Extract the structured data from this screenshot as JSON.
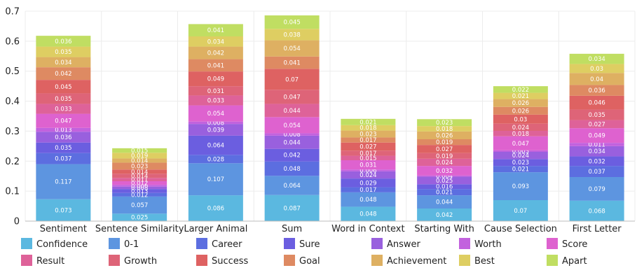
{
  "chart_data": {
    "type": "bar",
    "stacked": true,
    "title": "",
    "xlabel": "",
    "ylabel": "",
    "ylim": [
      0,
      0.7
    ],
    "yticks": [
      "0",
      "0.1",
      "0.2",
      "0.3",
      "0.4",
      "0.5",
      "0.6",
      "0.7"
    ],
    "grid": true,
    "legend": "bottom",
    "categories": [
      "Sentiment",
      "Sentence Similarity",
      "Larger Animal",
      "Sum",
      "Word in Context",
      "Starting With",
      "Cause Selection",
      "First Letter"
    ],
    "series": [
      {
        "name": "Confidence",
        "color": "#5bb8e0",
        "values": [
          0.073,
          0.025,
          0.086,
          0.087,
          0.048,
          0.042,
          0.07,
          0.068
        ]
      },
      {
        "name": "0-1",
        "color": "#5d95e0",
        "values": [
          0.117,
          0.057,
          0.107,
          0.064,
          0.048,
          0.044,
          0.093,
          0.079
        ]
      },
      {
        "name": "Career",
        "color": "#5c6ee0",
        "values": [
          0.037,
          0.012,
          0.028,
          0.048,
          0.017,
          0.021,
          0.021,
          0.037
        ]
      },
      {
        "name": "Sure",
        "color": "#6b5ee0",
        "values": [
          0.035,
          0.013,
          0.064,
          0.042,
          0.029,
          0.016,
          0.023,
          0.032
        ]
      },
      {
        "name": "Answer",
        "color": "#9960de",
        "values": [
          0.036,
          0.008,
          0.039,
          0.044,
          0.024,
          0.025,
          0.024,
          0.034
        ]
      },
      {
        "name": "Worth",
        "color": "#c262de",
        "values": [
          0.013,
          0.006,
          0.008,
          0.008,
          0.006,
          0.004,
          0.005,
          0.011
        ]
      },
      {
        "name": "Score",
        "color": "#de62cf",
        "values": [
          0.047,
          0.012,
          0.054,
          0.054,
          0.031,
          0.032,
          0.047,
          0.049
        ]
      },
      {
        "name": "Result",
        "color": "#de6299",
        "values": [
          0.033,
          0.011,
          0.033,
          0.044,
          0.015,
          0.024,
          0.018,
          0.027
        ]
      },
      {
        "name": "Growth",
        "color": "#de6478",
        "values": [
          0.035,
          0.014,
          0.031,
          0.047,
          0.017,
          0.019,
          0.024,
          0.035
        ]
      },
      {
        "name": "Success",
        "color": "#de6262",
        "values": [
          0.045,
          0.014,
          0.049,
          0.07,
          0.027,
          0.027,
          0.03,
          0.046
        ]
      },
      {
        "name": "Goal",
        "color": "#de8a62",
        "values": [
          0.042,
          0.023,
          0.041,
          0.041,
          0.017,
          0.019,
          0.026,
          0.036
        ]
      },
      {
        "name": "Achievement",
        "color": "#deb062",
        "values": [
          0.034,
          0.014,
          0.042,
          0.054,
          0.023,
          0.026,
          0.026,
          0.04
        ]
      },
      {
        "name": "Best",
        "color": "#dece62",
        "values": [
          0.035,
          0.019,
          0.034,
          0.038,
          0.018,
          0.018,
          0.021,
          0.03
        ]
      },
      {
        "name": "Apart",
        "color": "#c0de62",
        "values": [
          0.036,
          0.015,
          0.041,
          0.045,
          0.021,
          0.023,
          0.022,
          0.034
        ]
      }
    ]
  }
}
